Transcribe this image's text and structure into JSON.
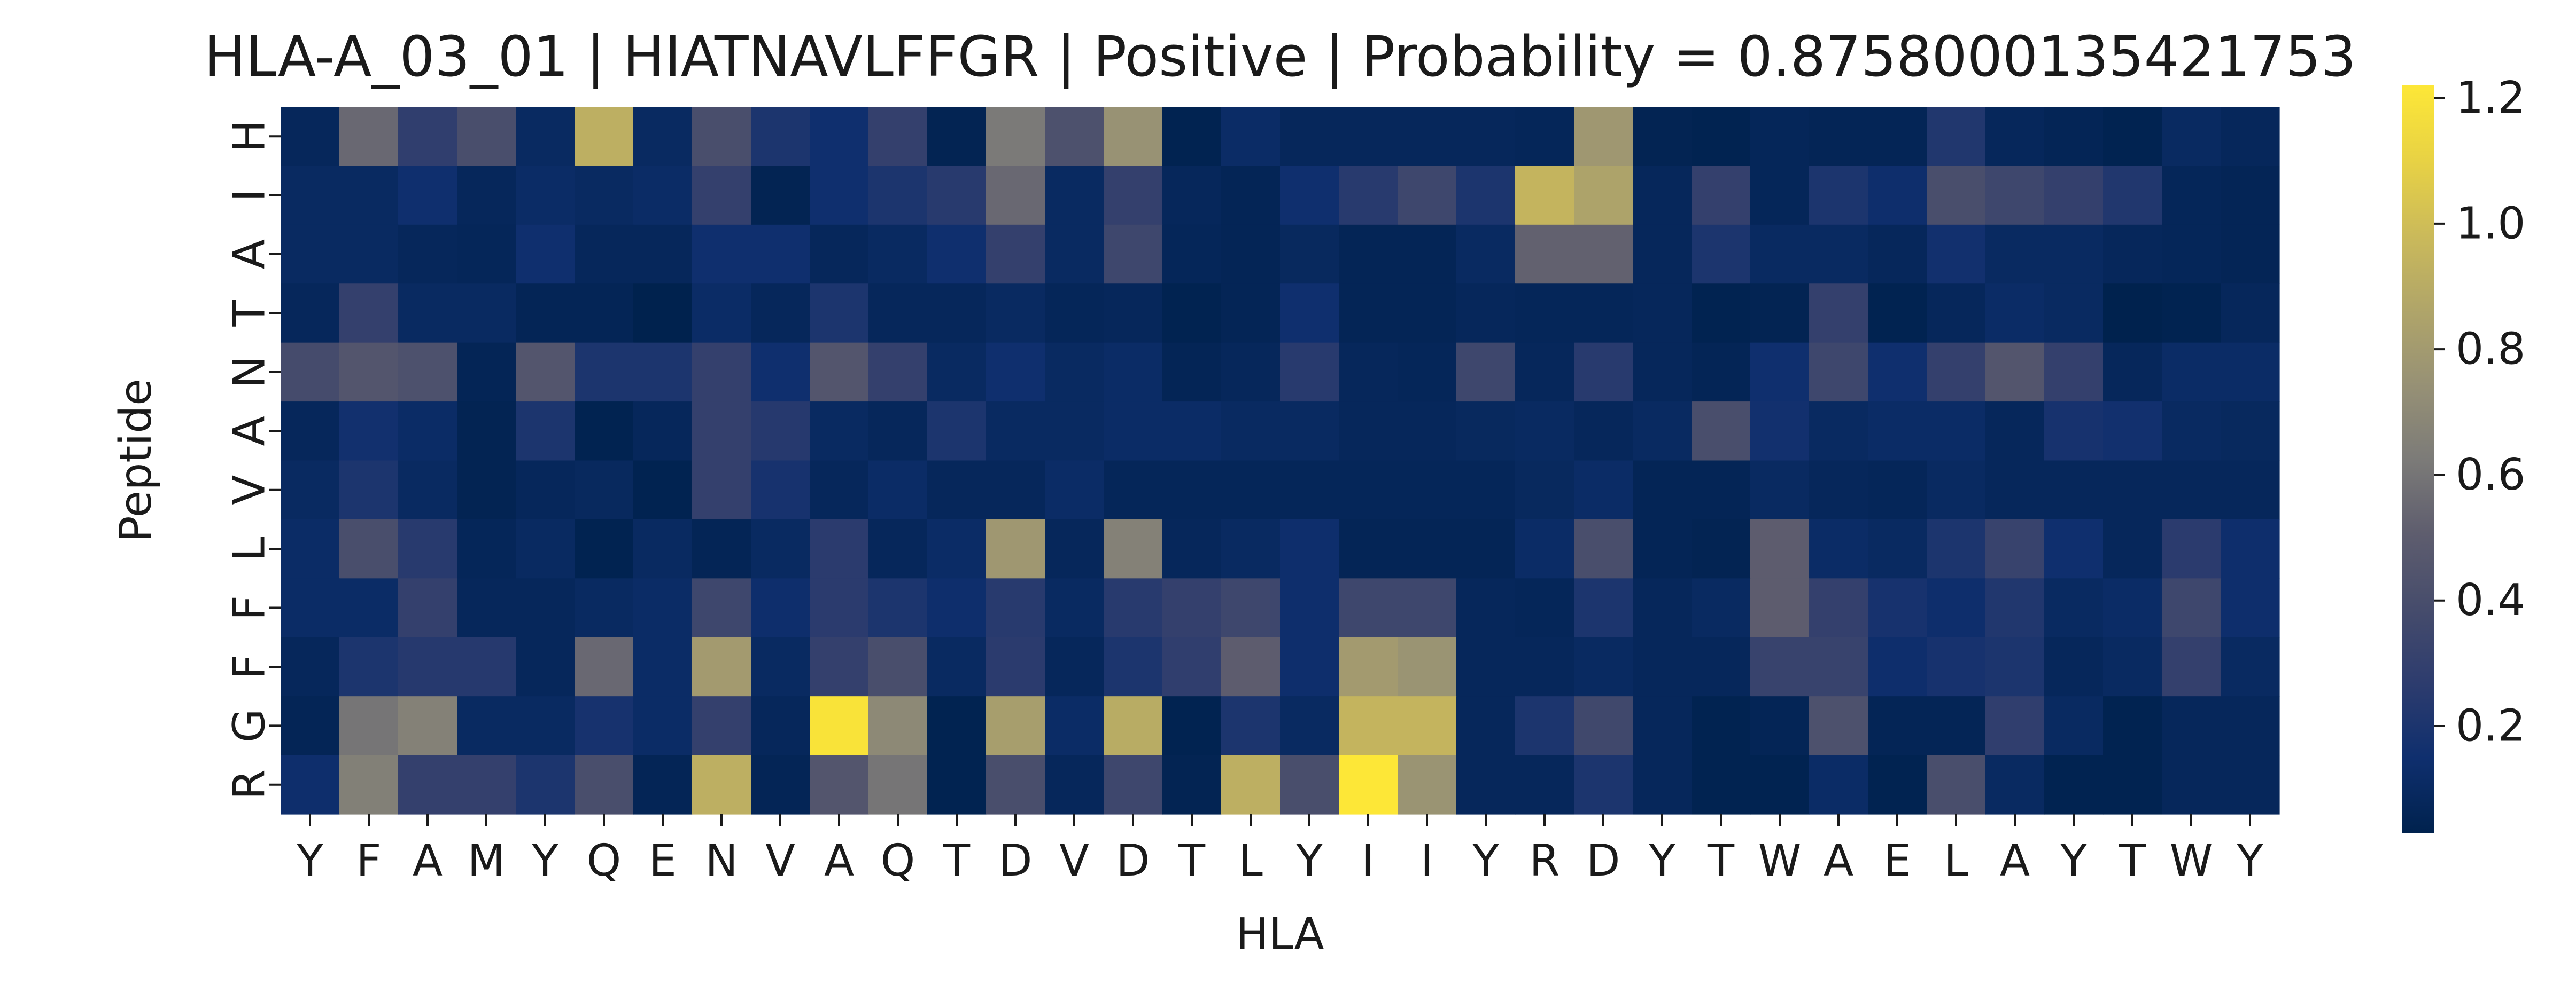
{
  "chart_data": {
    "type": "heatmap",
    "title": "HLA-A_03_01 | HIATNAVLFFGR | Positive | Probability = 0.8758000135421753",
    "xlabel": "HLA",
    "ylabel": "Peptide",
    "x_categories": [
      "Y",
      "F",
      "A",
      "M",
      "Y",
      "Q",
      "E",
      "N",
      "V",
      "A",
      "Q",
      "T",
      "D",
      "V",
      "D",
      "T",
      "L",
      "Y",
      "I",
      "I",
      "Y",
      "R",
      "D",
      "Y",
      "T",
      "W",
      "A",
      "E",
      "L",
      "A",
      "Y",
      "T",
      "W",
      "Y"
    ],
    "y_categories": [
      "H",
      "I",
      "A",
      "T",
      "N",
      "A",
      "V",
      "L",
      "F",
      "F",
      "G",
      "R"
    ],
    "colormap": "cividis",
    "color_range": [
      0.03,
      1.22
    ],
    "colorbar_ticks": [
      "0.2",
      "0.4",
      "0.6",
      "0.8",
      "1.0",
      "1.2"
    ],
    "colorbar_tick_values": [
      0.2,
      0.4,
      0.6,
      0.8,
      1.0,
      1.2
    ],
    "values": [
      [
        0.08,
        0.55,
        0.28,
        0.4,
        0.1,
        0.92,
        0.1,
        0.4,
        0.2,
        0.15,
        0.3,
        0.05,
        0.62,
        0.42,
        0.75,
        0.04,
        0.12,
        0.08,
        0.08,
        0.08,
        0.08,
        0.07,
        0.78,
        0.05,
        0.04,
        0.07,
        0.06,
        0.06,
        0.22,
        0.08,
        0.06,
        0.04,
        0.1,
        0.08
      ],
      [
        0.1,
        0.1,
        0.15,
        0.08,
        0.12,
        0.1,
        0.12,
        0.3,
        0.05,
        0.15,
        0.2,
        0.25,
        0.55,
        0.1,
        0.3,
        0.08,
        0.06,
        0.15,
        0.25,
        0.35,
        0.2,
        0.95,
        0.85,
        0.08,
        0.3,
        0.07,
        0.2,
        0.14,
        0.4,
        0.35,
        0.3,
        0.22,
        0.07,
        0.06
      ],
      [
        0.1,
        0.1,
        0.08,
        0.07,
        0.15,
        0.08,
        0.08,
        0.15,
        0.15,
        0.08,
        0.1,
        0.15,
        0.3,
        0.1,
        0.35,
        0.07,
        0.06,
        0.09,
        0.06,
        0.06,
        0.1,
        0.52,
        0.52,
        0.08,
        0.2,
        0.1,
        0.1,
        0.08,
        0.16,
        0.1,
        0.1,
        0.08,
        0.07,
        0.06
      ],
      [
        0.08,
        0.3,
        0.1,
        0.1,
        0.06,
        0.06,
        0.03,
        0.12,
        0.08,
        0.2,
        0.08,
        0.08,
        0.1,
        0.07,
        0.08,
        0.04,
        0.06,
        0.15,
        0.06,
        0.06,
        0.08,
        0.07,
        0.07,
        0.08,
        0.04,
        0.05,
        0.3,
        0.04,
        0.08,
        0.12,
        0.1,
        0.03,
        0.04,
        0.08
      ],
      [
        0.38,
        0.45,
        0.42,
        0.06,
        0.45,
        0.2,
        0.2,
        0.3,
        0.15,
        0.45,
        0.3,
        0.1,
        0.15,
        0.1,
        0.12,
        0.06,
        0.08,
        0.25,
        0.08,
        0.07,
        0.35,
        0.08,
        0.25,
        0.08,
        0.06,
        0.15,
        0.35,
        0.15,
        0.3,
        0.45,
        0.3,
        0.08,
        0.12,
        0.12
      ],
      [
        0.08,
        0.16,
        0.12,
        0.05,
        0.2,
        0.04,
        0.08,
        0.3,
        0.24,
        0.1,
        0.08,
        0.2,
        0.1,
        0.1,
        0.12,
        0.12,
        0.1,
        0.1,
        0.08,
        0.08,
        0.09,
        0.1,
        0.08,
        0.1,
        0.4,
        0.16,
        0.1,
        0.12,
        0.12,
        0.08,
        0.18,
        0.16,
        0.1,
        0.09
      ],
      [
        0.1,
        0.2,
        0.1,
        0.05,
        0.08,
        0.09,
        0.04,
        0.3,
        0.18,
        0.08,
        0.12,
        0.08,
        0.08,
        0.12,
        0.07,
        0.07,
        0.07,
        0.07,
        0.07,
        0.07,
        0.07,
        0.09,
        0.12,
        0.06,
        0.06,
        0.1,
        0.08,
        0.07,
        0.1,
        0.08,
        0.08,
        0.08,
        0.08,
        0.08
      ],
      [
        0.12,
        0.4,
        0.25,
        0.07,
        0.1,
        0.04,
        0.1,
        0.06,
        0.1,
        0.26,
        0.08,
        0.12,
        0.78,
        0.08,
        0.66,
        0.08,
        0.1,
        0.14,
        0.06,
        0.06,
        0.06,
        0.12,
        0.4,
        0.06,
        0.05,
        0.5,
        0.12,
        0.1,
        0.2,
        0.32,
        0.15,
        0.08,
        0.26,
        0.14
      ],
      [
        0.12,
        0.12,
        0.3,
        0.08,
        0.08,
        0.1,
        0.12,
        0.35,
        0.14,
        0.26,
        0.2,
        0.14,
        0.25,
        0.1,
        0.25,
        0.3,
        0.35,
        0.14,
        0.35,
        0.35,
        0.08,
        0.07,
        0.2,
        0.08,
        0.1,
        0.5,
        0.3,
        0.18,
        0.14,
        0.22,
        0.1,
        0.12,
        0.35,
        0.14
      ],
      [
        0.08,
        0.2,
        0.24,
        0.24,
        0.08,
        0.55,
        0.12,
        0.8,
        0.1,
        0.3,
        0.4,
        0.1,
        0.26,
        0.08,
        0.2,
        0.28,
        0.5,
        0.14,
        0.8,
        0.76,
        0.08,
        0.08,
        0.1,
        0.08,
        0.08,
        0.32,
        0.32,
        0.14,
        0.18,
        0.2,
        0.08,
        0.1,
        0.3,
        0.1
      ],
      [
        0.06,
        0.6,
        0.66,
        0.1,
        0.1,
        0.18,
        0.12,
        0.3,
        0.08,
        1.2,
        0.7,
        0.04,
        0.82,
        0.12,
        0.9,
        0.04,
        0.2,
        0.1,
        0.95,
        0.95,
        0.08,
        0.2,
        0.36,
        0.08,
        0.04,
        0.06,
        0.42,
        0.06,
        0.06,
        0.28,
        0.1,
        0.04,
        0.08,
        0.08
      ],
      [
        0.14,
        0.65,
        0.3,
        0.3,
        0.2,
        0.4,
        0.06,
        0.92,
        0.06,
        0.45,
        0.6,
        0.04,
        0.4,
        0.08,
        0.35,
        0.05,
        0.92,
        0.4,
        1.22,
        0.76,
        0.08,
        0.08,
        0.2,
        0.08,
        0.04,
        0.04,
        0.12,
        0.04,
        0.4,
        0.1,
        0.04,
        0.04,
        0.08,
        0.08
      ]
    ]
  }
}
